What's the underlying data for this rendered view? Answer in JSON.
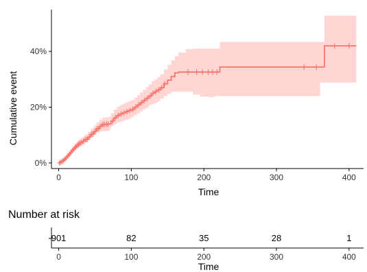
{
  "chart_data": [
    {
      "type": "line",
      "subtype": "step",
      "xlabel": "Time",
      "ylabel": "Cumulative event",
      "xlim": [
        -10,
        420
      ],
      "ylim": [
        -2,
        55
      ],
      "x_ticks": [
        0,
        100,
        200,
        300,
        400
      ],
      "y_ticks": [
        0,
        20,
        40
      ],
      "y_tick_labels": [
        "0%",
        "20%",
        "40%"
      ],
      "grid": false,
      "color": "#F8766D",
      "band_color": "#FFD6D3",
      "series": [
        {
          "x": [
            0,
            2,
            4,
            6,
            8,
            10,
            12,
            14,
            16,
            18,
            20,
            22,
            24,
            26,
            28,
            30,
            33,
            36,
            40,
            44,
            48,
            52,
            56,
            60,
            65,
            70,
            72,
            76,
            80,
            84,
            88,
            92,
            96,
            100,
            104,
            108,
            112,
            116,
            120,
            124,
            128,
            132,
            136,
            140,
            145,
            150,
            155,
            160,
            165,
            175,
            185,
            195,
            205,
            215,
            222,
            240,
            280,
            320,
            340,
            360,
            366,
            380,
            400,
            410
          ],
          "y": [
            0,
            0.3,
            0.6,
            1.0,
            1.5,
            2.0,
            2.6,
            3.2,
            3.8,
            4.5,
            5.0,
            5.6,
            6.1,
            6.6,
            7.0,
            7.3,
            7.8,
            8.4,
            9.3,
            10.3,
            11.3,
            12.3,
            13.2,
            13.8,
            13.9,
            14.0,
            15.0,
            16.2,
            17.0,
            17.6,
            18.0,
            18.4,
            18.8,
            19.2,
            20.0,
            20.8,
            21.6,
            22.4,
            23.2,
            24.0,
            25.0,
            25.6,
            26.2,
            27.0,
            28.4,
            29.7,
            31.0,
            32.3,
            32.6,
            32.6,
            32.6,
            32.6,
            32.6,
            32.6,
            34.4,
            34.4,
            34.4,
            34.4,
            34.4,
            34.4,
            42.0,
            42.0,
            42.0,
            42.0
          ],
          "lower": [
            0,
            0.1,
            0.3,
            0.6,
            0.9,
            1.3,
            1.8,
            2.3,
            2.8,
            3.3,
            3.8,
            4.3,
            4.7,
            5.1,
            5.4,
            5.7,
            6.1,
            6.6,
            7.4,
            8.3,
            9.2,
            10.1,
            10.9,
            11.3,
            11.4,
            11.5,
            12.2,
            13.3,
            14.0,
            14.5,
            14.8,
            15.2,
            15.5,
            15.9,
            16.5,
            17.2,
            17.8,
            18.5,
            19.2,
            19.8,
            20.7,
            21.1,
            21.5,
            22.1,
            23.1,
            24.0,
            24.8,
            25.5,
            25.6,
            25.6,
            25.6,
            24.5,
            23.8,
            23.6,
            24.0,
            24.0,
            24.0,
            24.0,
            24.0,
            24.0,
            28.8,
            28.8,
            28.8,
            28.8
          ],
          "upper": [
            0.5,
            0.7,
            1.1,
            1.6,
            2.2,
            2.8,
            3.4,
            4.1,
            4.8,
            5.6,
            6.3,
            6.9,
            7.5,
            8.0,
            8.5,
            8.9,
            9.5,
            10.2,
            11.2,
            12.3,
            13.4,
            14.5,
            15.5,
            16.2,
            16.4,
            16.6,
            17.8,
            19.1,
            20.1,
            20.8,
            21.3,
            21.7,
            22.2,
            22.6,
            23.4,
            24.3,
            25.3,
            26.2,
            27.2,
            28.1,
            29.3,
            30.0,
            30.8,
            31.8,
            33.5,
            35.2,
            36.8,
            38.3,
            39.6,
            40.8,
            41.0,
            41.0,
            41.0,
            41.0,
            43.4,
            43.4,
            43.4,
            43.4,
            43.4,
            43.4,
            52.8,
            52.8,
            52.8,
            52.8
          ]
        }
      ],
      "censor_x": [
        1,
        3,
        5,
        7,
        9,
        11,
        13,
        15,
        17,
        19,
        21,
        23,
        25,
        27,
        29,
        31,
        34,
        37,
        39,
        42,
        45,
        47,
        50,
        53,
        55,
        58,
        61,
        63,
        66,
        68,
        74,
        78,
        82,
        86,
        90,
        94,
        98,
        102,
        106,
        110,
        114,
        118,
        122,
        126,
        130,
        134,
        138,
        142,
        146,
        178,
        190,
        198,
        206,
        212,
        218,
        338,
        355,
        380,
        400
      ]
    },
    {
      "type": "table",
      "title": "Number at risk",
      "xlabel": "Time",
      "x_ticks": [
        0,
        100,
        200,
        300,
        400
      ],
      "x": [
        0,
        100,
        200,
        300,
        400
      ],
      "values": [
        "901",
        "82",
        "35",
        "28",
        "1"
      ]
    }
  ]
}
